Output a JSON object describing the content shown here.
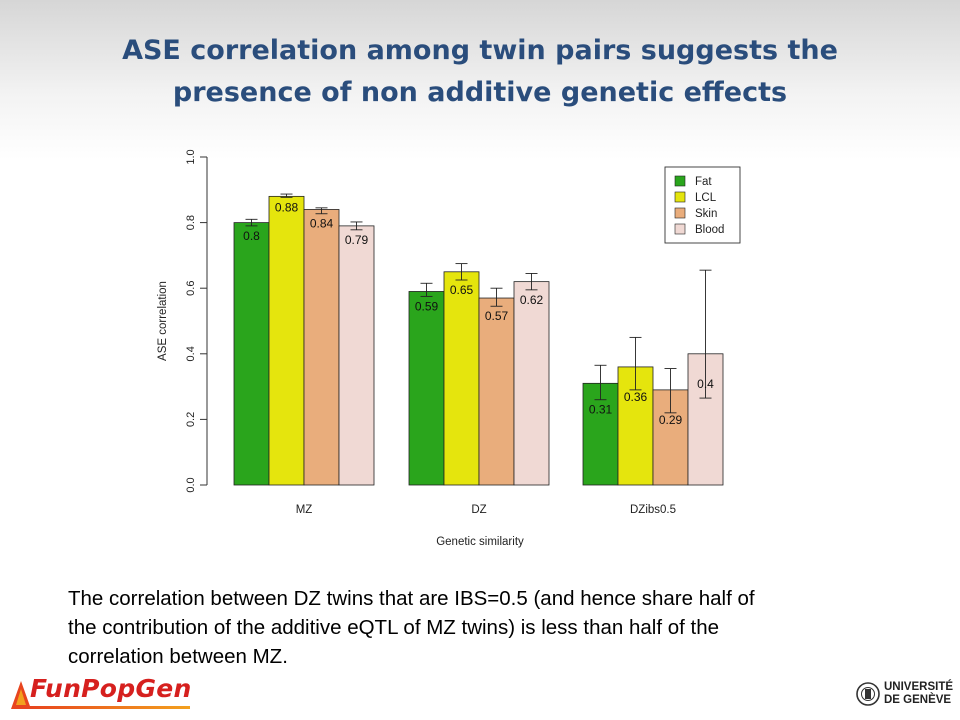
{
  "slide": {
    "title_line1": "ASE correlation among twin pairs suggests the",
    "title_line2": "presence of non additive genetic effects",
    "caption_line1": "The correlation between DZ twins that are IBS=0.5 (and hence share half of",
    "caption_line2": "the contribution of the additive eQTL of MZ twins) is less than half of the",
    "caption_line3": "correlation between MZ.",
    "logo_left": "FunPopGen",
    "logo_right_line1": "UNIVERSITÉ",
    "logo_right_line2": "DE GENÈVE"
  },
  "chart_data": {
    "type": "bar",
    "xlabel": "Genetic similarity",
    "ylabel": "ASE correlation",
    "ylim": [
      0,
      1
    ],
    "yticks": [
      "0.0",
      "0.2",
      "0.4",
      "0.6",
      "0.8",
      "1.0"
    ],
    "categories": [
      "MZ",
      "DZ",
      "DZibs0.5"
    ],
    "legend_position": "top-right",
    "series": [
      {
        "name": "Fat",
        "color": "#2aa51c",
        "values": [
          0.8,
          0.59,
          0.31
        ],
        "labels": [
          "0.8",
          "0.59",
          "0.31"
        ],
        "err_low": [
          0.79,
          0.575,
          0.26
        ],
        "err_high": [
          0.81,
          0.615,
          0.365
        ]
      },
      {
        "name": "LCL",
        "color": "#e5e50d",
        "values": [
          0.88,
          0.65,
          0.36
        ],
        "labels": [
          "0.88",
          "0.65",
          "0.36"
        ],
        "err_low": [
          0.877,
          0.625,
          0.29
        ],
        "err_high": [
          0.887,
          0.675,
          0.45
        ]
      },
      {
        "name": "Skin",
        "color": "#e9ad7c",
        "values": [
          0.84,
          0.57,
          0.29
        ],
        "labels": [
          "0.84",
          "0.57",
          "0.29"
        ],
        "err_low": [
          0.827,
          0.545,
          0.22
        ],
        "err_high": [
          0.845,
          0.6,
          0.355
        ]
      },
      {
        "name": "Blood",
        "color": "#f0d9d4",
        "values": [
          0.79,
          0.62,
          0.4
        ],
        "labels": [
          "0.79",
          "0.62",
          "0.4"
        ],
        "err_low": [
          0.778,
          0.595,
          0.265
        ],
        "err_high": [
          0.802,
          0.645,
          0.655
        ]
      }
    ]
  }
}
